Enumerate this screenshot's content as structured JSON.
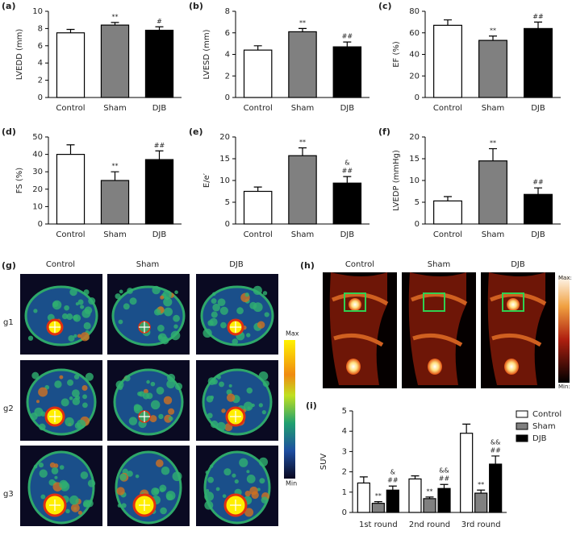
{
  "chart_data": [
    {
      "type": "bar",
      "panel": "(a)",
      "ylabel": "LVEDD (mm)",
      "categories": [
        "Control",
        "Sham",
        "DJB"
      ],
      "values": [
        7.5,
        8.4,
        7.8
      ],
      "errors": [
        0.4,
        0.3,
        0.4
      ],
      "colors": [
        "#ffffff",
        "#808080",
        "#000000"
      ],
      "annotations": [
        [],
        [
          "**"
        ],
        [
          "#"
        ]
      ],
      "ylim": [
        0,
        10
      ],
      "yticks": [
        0,
        2,
        4,
        6,
        8,
        10
      ]
    },
    {
      "type": "bar",
      "panel": "(b)",
      "ylabel": "LVESD (mm)",
      "categories": [
        "Control",
        "Sham",
        "DJB"
      ],
      "values": [
        4.4,
        6.1,
        4.7
      ],
      "errors": [
        0.4,
        0.3,
        0.45
      ],
      "colors": [
        "#ffffff",
        "#808080",
        "#000000"
      ],
      "annotations": [
        [],
        [
          "**"
        ],
        [
          "##"
        ]
      ],
      "ylim": [
        0,
        8
      ],
      "yticks": [
        0,
        2,
        4,
        6,
        8
      ]
    },
    {
      "type": "bar",
      "panel": "(c)",
      "ylabel": "EF (%)",
      "categories": [
        "Control",
        "Sham",
        "DJB"
      ],
      "values": [
        67,
        53,
        64
      ],
      "errors": [
        5,
        4,
        6
      ],
      "colors": [
        "#ffffff",
        "#808080",
        "#000000"
      ],
      "annotations": [
        [],
        [
          "**"
        ],
        [
          "##"
        ]
      ],
      "ylim": [
        0,
        80
      ],
      "yticks": [
        0,
        20,
        40,
        60,
        80
      ]
    },
    {
      "type": "bar",
      "panel": "(d)",
      "ylabel": "FS (%)",
      "categories": [
        "Control",
        "Sham",
        "DJB"
      ],
      "values": [
        40,
        25,
        37
      ],
      "errors": [
        5.5,
        5,
        5
      ],
      "colors": [
        "#ffffff",
        "#808080",
        "#000000"
      ],
      "annotations": [
        [],
        [
          "**"
        ],
        [
          "##"
        ]
      ],
      "ylim": [
        0,
        50
      ],
      "yticks": [
        0,
        10,
        20,
        30,
        40,
        50
      ]
    },
    {
      "type": "bar",
      "panel": "(e)",
      "ylabel": "E/e′",
      "categories": [
        "Control",
        "Sham",
        "DJB"
      ],
      "values": [
        7.5,
        15.7,
        9.4
      ],
      "errors": [
        1,
        1.8,
        1.5
      ],
      "colors": [
        "#ffffff",
        "#808080",
        "#000000"
      ],
      "annotations": [
        [],
        [
          "**"
        ],
        [
          "##",
          "&"
        ]
      ],
      "ylim": [
        0,
        20
      ],
      "yticks": [
        0,
        5,
        10,
        15,
        20
      ]
    },
    {
      "type": "bar",
      "panel": "(f)",
      "ylabel": "LVEDP (mmHg)",
      "categories": [
        "Control",
        "Sham",
        "DJB"
      ],
      "values": [
        5.3,
        14.5,
        6.8
      ],
      "errors": [
        1,
        2.8,
        1.5
      ],
      "colors": [
        "#ffffff",
        "#808080",
        "#000000"
      ],
      "annotations": [
        [],
        [
          "**"
        ],
        [
          "##"
        ]
      ],
      "ylim": [
        0,
        20
      ],
      "yticks": [
        0,
        5,
        10,
        15,
        20
      ]
    },
    {
      "type": "grouped_bar",
      "panel": "(i)",
      "ylabel": "SUV",
      "categories": [
        "1st round",
        "2nd round",
        "3rd round"
      ],
      "ylim": [
        0,
        5
      ],
      "yticks": [
        0,
        1,
        2,
        3,
        4,
        5
      ],
      "legend": "right",
      "series": [
        {
          "name": "Control",
          "color": "#ffffff",
          "values": [
            1.45,
            1.65,
            3.9
          ],
          "errors": [
            0.3,
            0.15,
            0.45
          ],
          "annotations": [
            [],
            [],
            []
          ]
        },
        {
          "name": "Sham",
          "color": "#808080",
          "values": [
            0.45,
            0.68,
            0.95
          ],
          "errors": [
            0.08,
            0.08,
            0.15
          ],
          "annotations": [
            [
              "**"
            ],
            [
              "**"
            ],
            [
              "**"
            ]
          ]
        },
        {
          "name": "DJB",
          "color": "#000000",
          "values": [
            1.1,
            1.18,
            2.38
          ],
          "errors": [
            0.2,
            0.2,
            0.4
          ],
          "annotations": [
            [
              "##",
              "&"
            ],
            [
              "##",
              "&&"
            ],
            [
              "##",
              "&&"
            ]
          ]
        }
      ]
    }
  ],
  "images": {
    "g_label": "(g)",
    "g_columns": [
      "Control",
      "Sham",
      "DJB"
    ],
    "g_rows": [
      "g1",
      "g2",
      "g3"
    ],
    "g_max": "Max",
    "g_min": "Min",
    "h_label": "(h)",
    "h_columns": [
      "Control",
      "Sham",
      "DJB"
    ],
    "h_max": "Max:",
    "h_min": "Min:"
  }
}
